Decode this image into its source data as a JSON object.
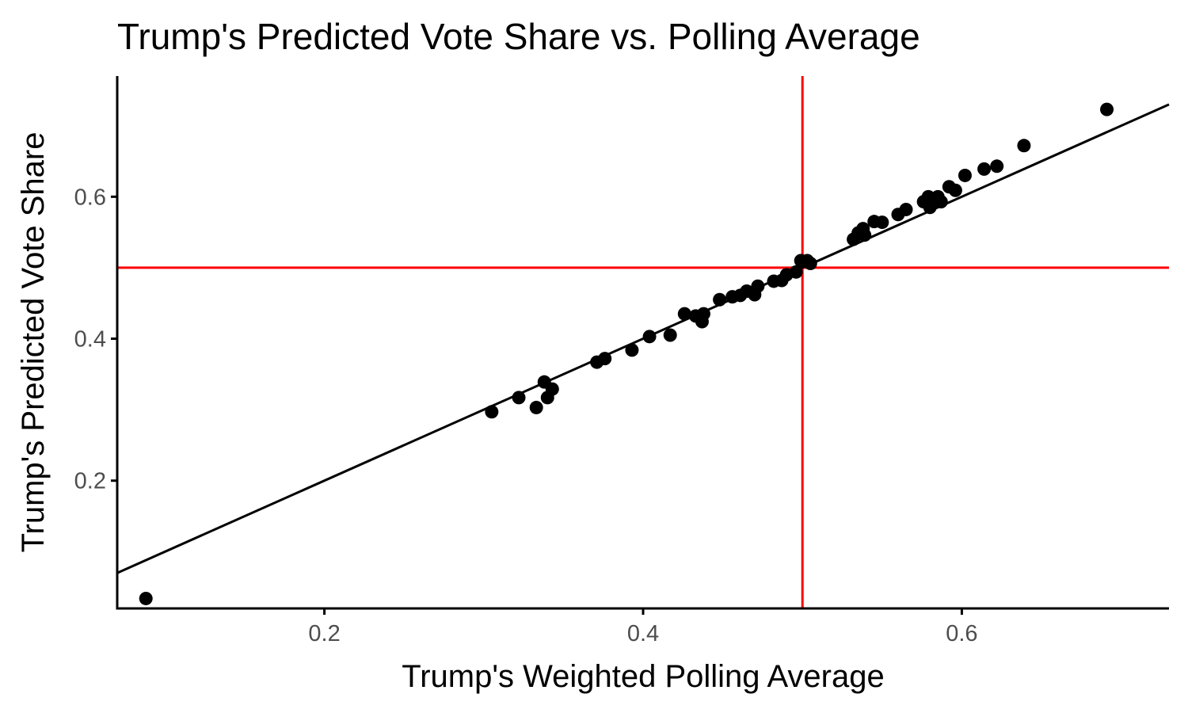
{
  "chart_data": {
    "type": "scatter",
    "title": "Trump's Predicted Vote Share vs. Polling Average",
    "xlabel": "Trump's Weighted Polling Average",
    "ylabel": "Trump's Predicted Vote Share",
    "xlim": [
      0.07,
      0.73
    ],
    "ylim": [
      0.02,
      0.77
    ],
    "x_ticks": [
      0.2,
      0.4,
      0.6
    ],
    "y_ticks": [
      0.2,
      0.4,
      0.6
    ],
    "x_tick_labels": [
      "0.2",
      "0.4",
      "0.6"
    ],
    "y_tick_labels": [
      "0.2",
      "0.4",
      "0.6"
    ],
    "grid": false,
    "legend": "none",
    "point_color": "#000000",
    "reference_line_color": "#ff0000",
    "reference_lines": {
      "vertical_x": 0.5,
      "horizontal_y": 0.5
    },
    "fit_line": {
      "slope": 1.0,
      "intercept": 0.0
    },
    "points": {
      "x": [
        0.088,
        0.305,
        0.322,
        0.333,
        0.338,
        0.34,
        0.343,
        0.371,
        0.376,
        0.393,
        0.404,
        0.417,
        0.426,
        0.433,
        0.437,
        0.438,
        0.448,
        0.456,
        0.461,
        0.465,
        0.47,
        0.472,
        0.482,
        0.487,
        0.49,
        0.496,
        0.499,
        0.503,
        0.505,
        0.532,
        0.535,
        0.538,
        0.539,
        0.545,
        0.55,
        0.56,
        0.565,
        0.576,
        0.579,
        0.58,
        0.585,
        0.587,
        0.592,
        0.596,
        0.602,
        0.614,
        0.622,
        0.639,
        0.691
      ],
      "y": [
        0.034,
        0.297,
        0.317,
        0.303,
        0.339,
        0.317,
        0.329,
        0.367,
        0.372,
        0.384,
        0.403,
        0.405,
        0.435,
        0.432,
        0.424,
        0.435,
        0.455,
        0.459,
        0.461,
        0.467,
        0.462,
        0.474,
        0.481,
        0.482,
        0.49,
        0.494,
        0.51,
        0.51,
        0.506,
        0.54,
        0.549,
        0.555,
        0.546,
        0.565,
        0.564,
        0.575,
        0.582,
        0.593,
        0.6,
        0.585,
        0.6,
        0.593,
        0.614,
        0.609,
        0.63,
        0.639,
        0.643,
        0.672,
        0.723
      ]
    }
  }
}
